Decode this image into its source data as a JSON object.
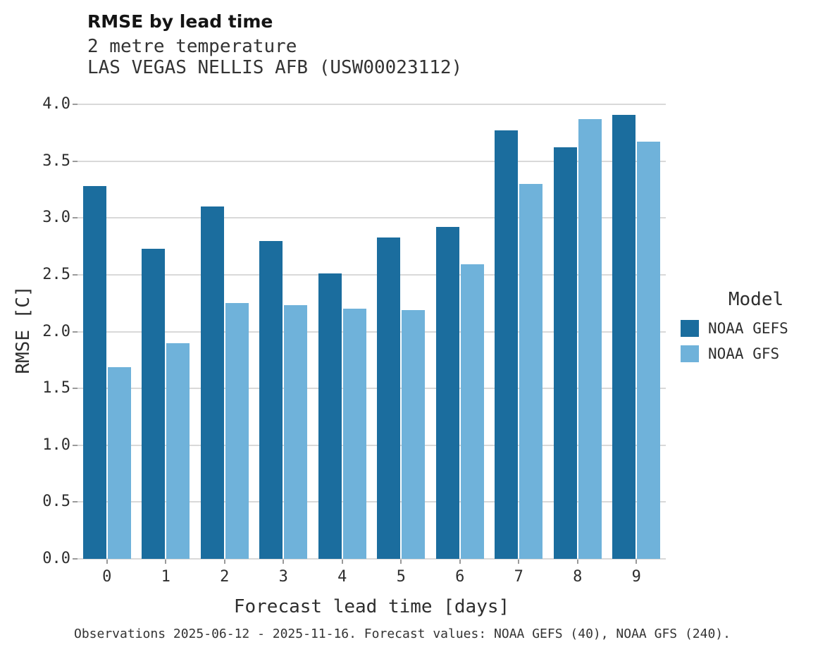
{
  "header": {
    "title": "RMSE by lead time",
    "subtitle_line1": "2 metre temperature",
    "subtitle_line2": "LAS VEGAS NELLIS AFB (USW00023112)"
  },
  "legend": {
    "title": "Model",
    "entries": [
      {
        "label": "NOAA GEFS",
        "color": "#1b6d9e"
      },
      {
        "label": "NOAA GFS",
        "color": "#6fb2da"
      }
    ]
  },
  "footer": {
    "caption": "Observations 2025-06-12 - 2025-11-16. Forecast values: NOAA GEFS (40), NOAA GFS (240)."
  },
  "chart_data": {
    "type": "bar",
    "title": "RMSE by lead time",
    "subtitle": [
      "2 metre temperature",
      "LAS VEGAS NELLIS AFB (USW00023112)"
    ],
    "xlabel": "Forecast lead time [days]",
    "ylabel": "RMSE [C]",
    "categories": [
      "0",
      "1",
      "2",
      "3",
      "4",
      "5",
      "6",
      "7",
      "8",
      "9"
    ],
    "series": [
      {
        "name": "NOAA GEFS",
        "color": "#1b6d9e",
        "values": [
          3.28,
          2.73,
          3.1,
          2.8,
          2.51,
          2.83,
          2.92,
          3.77,
          3.62,
          3.91
        ]
      },
      {
        "name": "NOAA GFS",
        "color": "#6fb2da",
        "values": [
          1.69,
          1.9,
          2.25,
          2.23,
          2.2,
          2.19,
          2.59,
          3.3,
          3.87,
          3.67
        ]
      }
    ],
    "ylim": [
      0,
      4.0
    ],
    "ytick_step": 0.5,
    "yticks": [
      "0.0",
      "0.5",
      "1.0",
      "1.5",
      "2.0",
      "2.5",
      "3.0",
      "3.5",
      "4.0"
    ],
    "grid": true,
    "gridline_color": "#d9d9d9",
    "legend_position": "right"
  }
}
